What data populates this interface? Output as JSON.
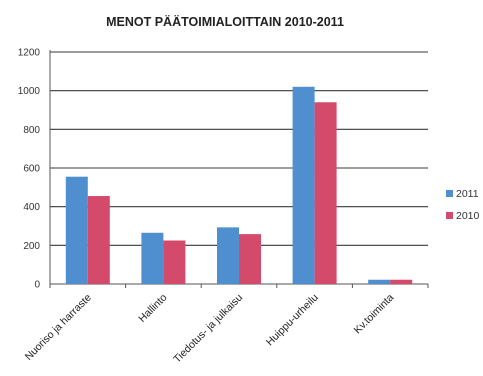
{
  "chart_data": {
    "type": "bar",
    "title": "MENOT PÄÄTOIMIALOITTAIN 2010-2011",
    "categories": [
      "Nuoriso ja harraste",
      "Hallinto",
      "Tiedotus- ja julkaisu",
      "Huippu-urheilu",
      "Kv.toiminta"
    ],
    "series": [
      {
        "name": "2011",
        "values": [
          555,
          265,
          293,
          1020,
          22
        ]
      },
      {
        "name": "2010",
        "values": [
          455,
          225,
          258,
          940,
          22
        ]
      }
    ],
    "yticks": [
      "0",
      "200",
      "400",
      "600",
      "800",
      "1000",
      "1200"
    ],
    "ylim": [
      0,
      1200
    ],
    "xlabel": "",
    "ylabel": "",
    "grid": true,
    "legend": "right",
    "colors": {
      "2011": "#4f8fd0",
      "2010": "#d44a6a"
    }
  }
}
